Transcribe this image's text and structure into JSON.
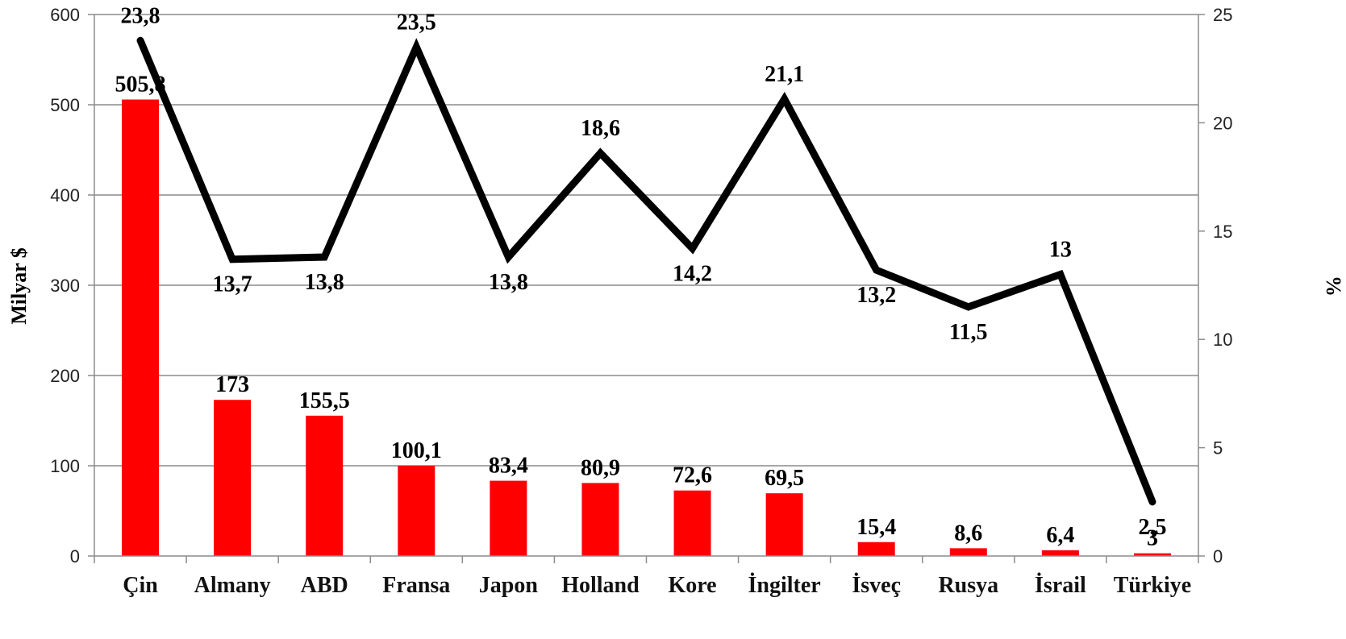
{
  "chart_data": {
    "type": "bar",
    "categories": [
      "Çin",
      "Almany",
      "ABD",
      "Fransa",
      "Japon",
      "Holland",
      "Kore",
      "İngilter",
      "İsveç",
      "Rusya",
      "İsrail",
      "Türkiye"
    ],
    "series": [
      {
        "type": "bar",
        "axis": "left",
        "color": "#ff0000",
        "values": [
          505.8,
          173,
          155.5,
          100.1,
          83.4,
          80.9,
          72.6,
          69.5,
          15.4,
          8.6,
          6.4,
          3
        ],
        "value_labels": [
          "505,8",
          "173",
          "155,5",
          "100,1",
          "83,4",
          "80,9",
          "72,6",
          "69,5",
          "15,4",
          "8,6",
          "6,4",
          "3"
        ]
      },
      {
        "type": "line",
        "axis": "right",
        "color": "#000000",
        "values": [
          23.8,
          13.7,
          13.8,
          23.5,
          13.8,
          18.6,
          14.2,
          21.1,
          13.2,
          11.5,
          13,
          2.5
        ],
        "value_labels": [
          "23,8",
          "13,7",
          "13,8",
          "23,5",
          "13,8",
          "18,6",
          "14,2",
          "21,1",
          "13,2",
          "11,5",
          "13",
          "2,5"
        ]
      }
    ],
    "ylabel": "Milyar $",
    "y2label": "%",
    "ylim": [
      0,
      600
    ],
    "y2lim": [
      0,
      25
    ],
    "yticks": [
      0,
      100,
      200,
      300,
      400,
      500,
      600
    ],
    "y2ticks": [
      0,
      5,
      10,
      15,
      20,
      25
    ],
    "grid": true,
    "legend": "none"
  }
}
